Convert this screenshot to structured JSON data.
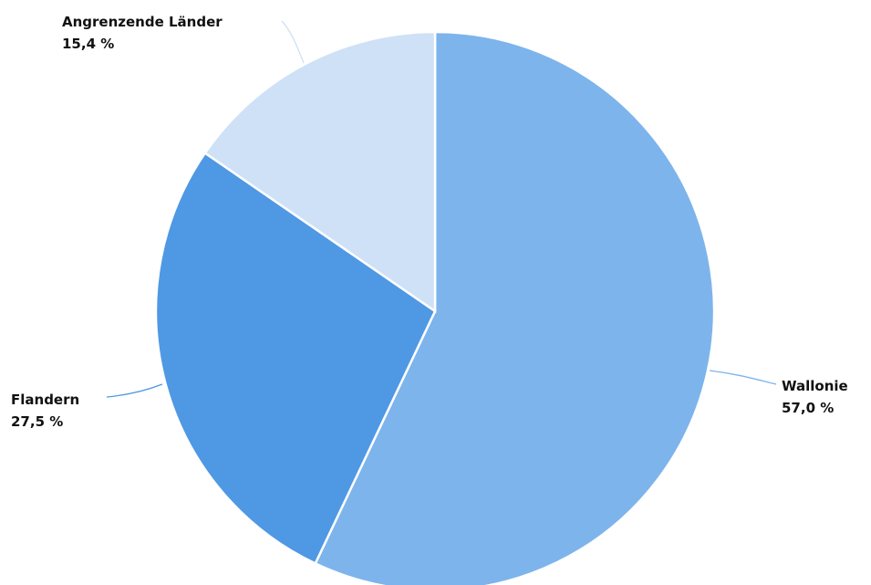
{
  "chart_data": {
    "type": "pie",
    "start_angle_deg": 0,
    "direction": "clockwise",
    "slices": [
      {
        "name": "Wallonie",
        "value": 57.0,
        "value_label": "57,0 %",
        "color": "#7db4ec"
      },
      {
        "name": "Flandern",
        "value": 27.5,
        "value_label": "27,5 %",
        "color": "#4f98e4"
      },
      {
        "name": "Angrenzende Länder",
        "value": 15.4,
        "value_label": "15,4 %",
        "color": "#cfe1f6"
      }
    ],
    "leader_colors": [
      "#7db4ec",
      "#4f98e4",
      "#cfe1f6"
    ]
  }
}
